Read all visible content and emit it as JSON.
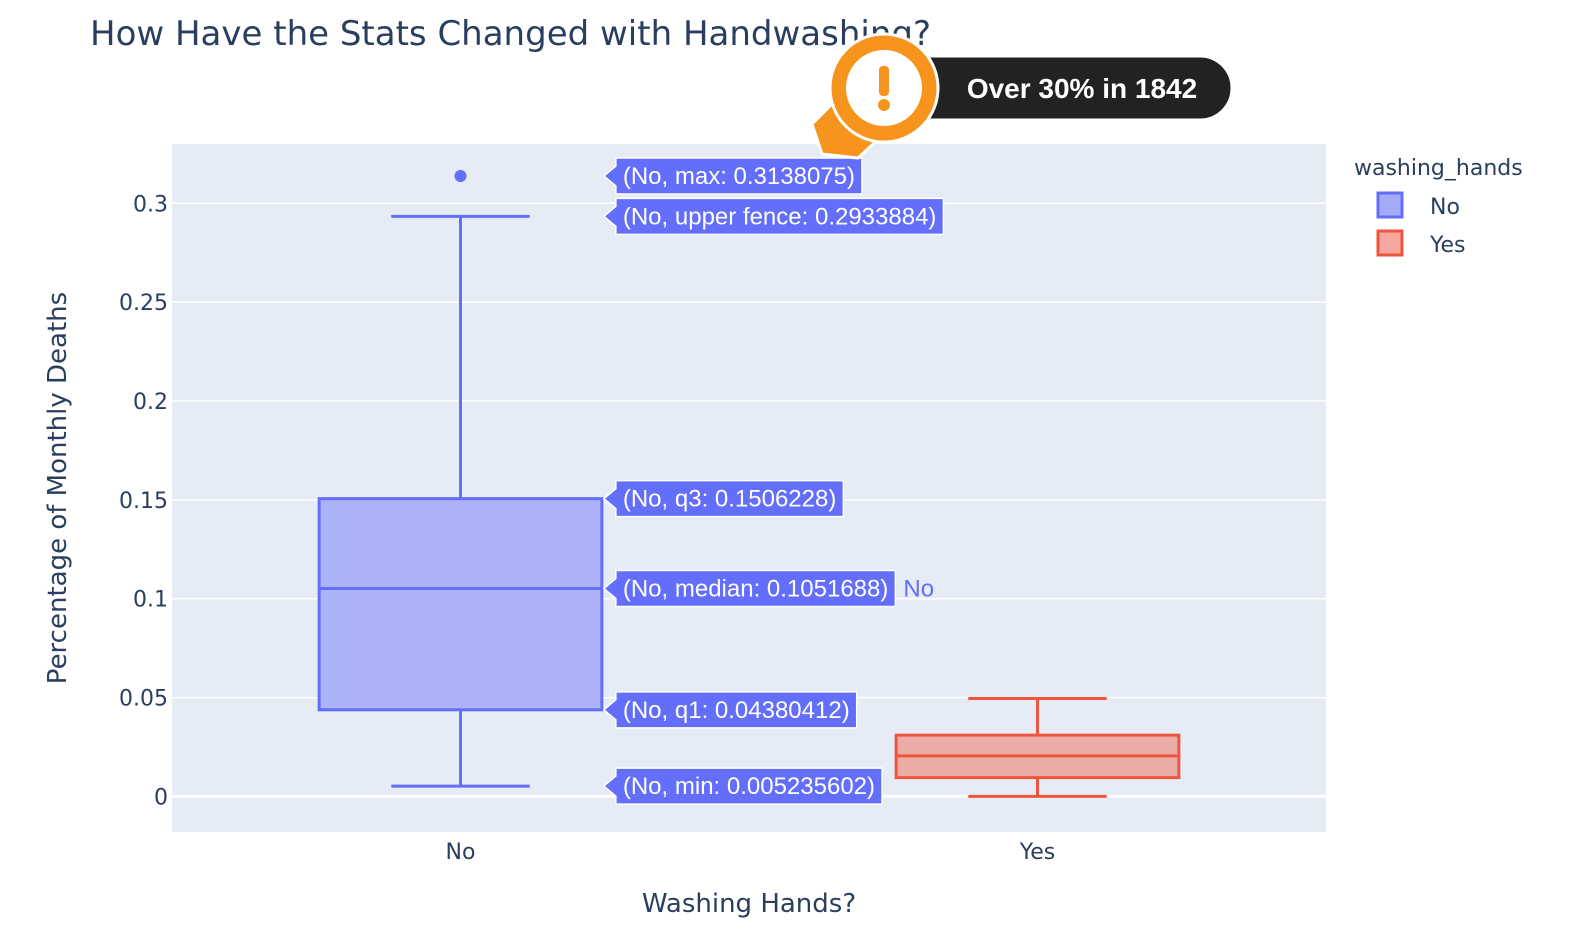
{
  "chart_data": {
    "type": "box",
    "title": "How Have the Stats Changed with Handwashing?",
    "xlabel": "Washing Hands?",
    "ylabel": "Percentage of Monthly Deaths",
    "categories": [
      "No",
      "Yes"
    ],
    "ylim": [
      -0.018,
      0.33
    ],
    "yticks": [
      0,
      0.05,
      0.1,
      0.15,
      0.2,
      0.25,
      0.3
    ],
    "ytick_labels": [
      "0",
      "0.05",
      "0.1",
      "0.15",
      "0.2",
      "0.25",
      "0.3"
    ],
    "grid": true,
    "legend": {
      "title": "washing_hands",
      "position": "top-right"
    },
    "series": [
      {
        "name": "No",
        "color": "#636efa",
        "fill": "#a5acf7",
        "min": 0.005235602,
        "q1": 0.04380412,
        "median": 0.1051688,
        "q3": 0.1506228,
        "upper_fence": 0.2933884,
        "max": 0.3138075,
        "outliers": [
          0.3138075
        ]
      },
      {
        "name": "Yes",
        "color": "#ef553b",
        "fill": "#eba5a0",
        "min": 0,
        "q1": 0.0095,
        "median": 0.0205,
        "q3": 0.031,
        "upper_fence": 0.0495,
        "max": 0.0495,
        "outliers": []
      }
    ],
    "hover_labels": [
      {
        "series": "No",
        "stat": "max",
        "text": "(No, max: 0.3138075)"
      },
      {
        "series": "No",
        "stat": "upper_fence",
        "text": "(No, upper fence: 0.2933884)"
      },
      {
        "series": "No",
        "stat": "q3",
        "text": "(No, q3: 0.1506228)"
      },
      {
        "series": "No",
        "stat": "median",
        "text": "(No, median: 0.1051688)",
        "name_label": "No"
      },
      {
        "series": "No",
        "stat": "q1",
        "text": "(No, q1: 0.04380412)"
      },
      {
        "series": "No",
        "stat": "min",
        "text": "(No, min: 0.005235602)"
      }
    ]
  },
  "annotation": {
    "text": "Over 30% in 1842",
    "icon": "exclamation-icon",
    "badge_color": "#f7941d",
    "box_color": "#222222"
  }
}
